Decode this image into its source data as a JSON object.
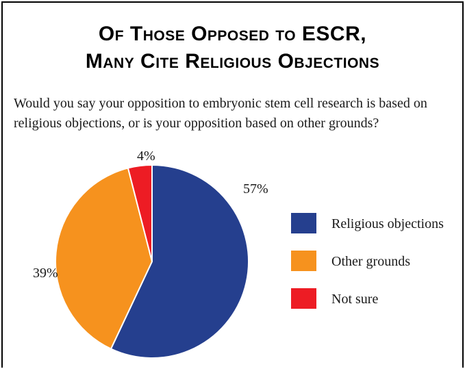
{
  "title_lines": [
    "Of Those Opposed to ESCR,",
    "Many Cite Religious Objections"
  ],
  "question_lines": [
    "Would you say your opposition to embryonic stem cell research is based on",
    "religious objections, or is your opposition based on other grounds?"
  ],
  "chart_data": {
    "type": "pie",
    "title": "Of Those Opposed to ESCR, Many Cite Religious Objections",
    "categories": [
      "Religious objections",
      "Other grounds",
      "Not sure"
    ],
    "values": [
      57,
      39,
      4
    ],
    "labels": [
      "57%",
      "39%",
      "4%"
    ],
    "colors": [
      "#253f8e",
      "#f6921e",
      "#ed1c24"
    ],
    "legend_position": "right"
  }
}
